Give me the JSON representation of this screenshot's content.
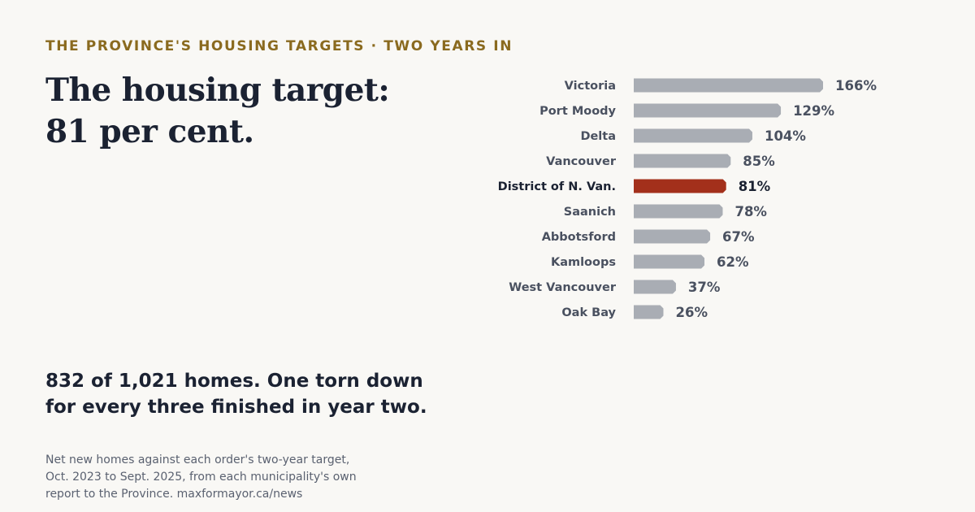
{
  "eyebrow": "THE PROVINCE'S HOUSING TARGETS · TWO YEARS IN",
  "headline": {
    "line1": "The housing target:",
    "line2": "81 per cent."
  },
  "subhead": {
    "line1": "832 of 1,021 homes. One torn down",
    "line2": "for every three finished in year two."
  },
  "footnote": {
    "line1": "Net new homes against each order's two-year target,",
    "line2": "Oct. 2023 to Sept. 2025, from each municipality's own",
    "line3": "report to the Province. maxformayor.ca/news"
  },
  "colors": {
    "bar_default": "#a9adb4",
    "bar_highlight": "#a3301b",
    "label_default": "#4a5160",
    "label_highlight": "#1b2232",
    "value_default": "#4a5160",
    "value_highlight": "#1b2232",
    "eyebrow": "#8a6a1f"
  },
  "chart_data": {
    "type": "bar",
    "orientation": "horizontal",
    "categories": [
      "Victoria",
      "Port Moody",
      "Delta",
      "Vancouver",
      "District of N. Van.",
      "Saanich",
      "Abbotsford",
      "Kamloops",
      "West Vancouver",
      "Oak Bay"
    ],
    "values": [
      166,
      129,
      104,
      85,
      81,
      78,
      67,
      62,
      37,
      26
    ],
    "value_labels": [
      "166%",
      "129%",
      "104%",
      "85%",
      "81%",
      "78%",
      "67%",
      "62%",
      "37%",
      "26%"
    ],
    "highlight": "District of N. Van.",
    "unit": "%",
    "xlim": [
      0,
      166
    ],
    "grid": false,
    "legend": "none"
  }
}
